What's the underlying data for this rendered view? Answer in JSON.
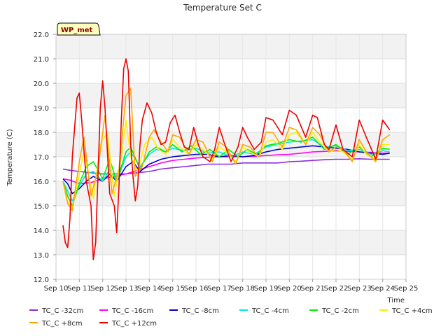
{
  "chart_data": {
    "type": "line",
    "title": "Temperature Set C",
    "xlabel": "Time",
    "ylabel": "Temperature (C)",
    "badge": "WP_met",
    "xlim": [
      10,
      25
    ],
    "ylim": [
      12.0,
      22.0
    ],
    "x_ticks": [
      {
        "value": 10,
        "label": "Sep 10"
      },
      {
        "value": 11,
        "label": "Sep 11"
      },
      {
        "value": 12,
        "label": "Sep 12"
      },
      {
        "value": 13,
        "label": "Sep 13"
      },
      {
        "value": 14,
        "label": "Sep 14"
      },
      {
        "value": 15,
        "label": "Sep 15"
      },
      {
        "value": 16,
        "label": "Sep 16"
      },
      {
        "value": 17,
        "label": "Sep 17"
      },
      {
        "value": 18,
        "label": "Sep 18"
      },
      {
        "value": 19,
        "label": "Sep 19"
      },
      {
        "value": 20,
        "label": "Sep 20"
      },
      {
        "value": 21,
        "label": "Sep 21"
      },
      {
        "value": 22,
        "label": "Sep 22"
      },
      {
        "value": 23,
        "label": "Sep 23"
      },
      {
        "value": 24,
        "label": "Sep 24"
      },
      {
        "value": 25,
        "label": "Sep 25"
      }
    ],
    "y_ticks": [
      {
        "value": 12,
        "label": "12.0"
      },
      {
        "value": 13,
        "label": "13.0"
      },
      {
        "value": 14,
        "label": "14.0"
      },
      {
        "value": 15,
        "label": "15.0"
      },
      {
        "value": 16,
        "label": "16.0"
      },
      {
        "value": 17,
        "label": "17.0"
      },
      {
        "value": 18,
        "label": "18.0"
      },
      {
        "value": 19,
        "label": "19.0"
      },
      {
        "value": 20,
        "label": "20.0"
      },
      {
        "value": 21,
        "label": "21.0"
      },
      {
        "value": 22,
        "label": "22.0"
      }
    ],
    "grid": true,
    "legend_position": "bottom",
    "series": [
      {
        "name": "TC_C -32cm",
        "color": "#8a2be2",
        "x": [
          10.3,
          10.6,
          11.0,
          11.5,
          12.0,
          12.5,
          13.0,
          13.5,
          14.0,
          14.5,
          15.0,
          15.5,
          16.0,
          16.5,
          17.0,
          17.5,
          18.0,
          18.5,
          19.0,
          19.5,
          20.0,
          20.5,
          21.0,
          21.5,
          22.0,
          22.5,
          23.0,
          23.5,
          24.0,
          24.3
        ],
        "y": [
          16.5,
          16.45,
          16.4,
          16.35,
          16.3,
          16.3,
          16.3,
          16.35,
          16.4,
          16.5,
          16.55,
          16.6,
          16.65,
          16.7,
          16.7,
          16.7,
          16.75,
          16.75,
          16.75,
          16.75,
          16.8,
          16.82,
          16.85,
          16.88,
          16.9,
          16.9,
          16.92,
          16.9,
          16.9,
          16.9
        ]
      },
      {
        "name": "TC_C -16cm",
        "color": "#ff00ff",
        "x": [
          10.3,
          10.6,
          11.0,
          11.5,
          12.0,
          12.5,
          13.0,
          13.5,
          14.0,
          14.5,
          15.0,
          15.5,
          16.0,
          16.5,
          17.0,
          17.5,
          18.0,
          18.5,
          19.0,
          19.5,
          20.0,
          20.5,
          21.0,
          21.5,
          22.0,
          22.5,
          23.0,
          23.5,
          24.0,
          24.3
        ],
        "y": [
          16.1,
          16.05,
          15.9,
          15.95,
          16.1,
          16.2,
          16.3,
          16.45,
          16.6,
          16.75,
          16.85,
          16.9,
          16.95,
          16.98,
          17.0,
          17.0,
          17.0,
          17.02,
          17.05,
          17.08,
          17.1,
          17.15,
          17.2,
          17.22,
          17.25,
          17.22,
          17.2,
          17.18,
          17.15,
          17.15
        ]
      },
      {
        "name": "TC_C -8cm",
        "color": "#0000cd",
        "x": [
          10.3,
          10.5,
          10.7,
          11.0,
          11.3,
          11.6,
          12.0,
          12.3,
          12.6,
          13.0,
          13.3,
          13.6,
          14.0,
          14.5,
          15.0,
          15.5,
          16.0,
          16.5,
          17.0,
          17.5,
          18.0,
          18.5,
          19.0,
          19.5,
          20.0,
          20.5,
          21.0,
          21.5,
          22.0,
          22.5,
          23.0,
          23.5,
          24.0,
          24.3
        ],
        "y": [
          16.1,
          15.9,
          15.5,
          15.7,
          16.0,
          16.2,
          16.0,
          16.3,
          16.0,
          16.6,
          16.8,
          16.4,
          16.7,
          16.9,
          17.0,
          17.05,
          17.1,
          17.1,
          17.0,
          17.05,
          17.0,
          17.05,
          17.2,
          17.3,
          17.35,
          17.4,
          17.45,
          17.4,
          17.35,
          17.3,
          17.2,
          17.15,
          17.1,
          17.15
        ]
      },
      {
        "name": "TC_C -4cm",
        "color": "#00e5ee",
        "x": [
          10.3,
          10.5,
          10.7,
          11.0,
          11.3,
          11.6,
          12.0,
          12.3,
          12.6,
          13.0,
          13.2,
          13.6,
          14.0,
          14.3,
          14.7,
          15.0,
          15.5,
          16.0,
          16.5,
          17.0,
          17.5,
          18.0,
          18.5,
          19.0,
          19.5,
          20.0,
          20.5,
          21.0,
          21.5,
          22.0,
          22.5,
          23.0,
          23.5,
          24.0,
          24.3
        ],
        "y": [
          16.0,
          15.6,
          15.2,
          15.8,
          16.3,
          16.4,
          16.0,
          16.5,
          16.0,
          17.0,
          17.2,
          16.6,
          17.1,
          17.3,
          17.2,
          17.35,
          17.25,
          17.35,
          17.15,
          17.2,
          17.0,
          17.2,
          17.1,
          17.4,
          17.5,
          17.6,
          17.65,
          17.7,
          17.4,
          17.45,
          17.25,
          17.3,
          17.1,
          17.25,
          17.2
        ]
      },
      {
        "name": "TC_C -2cm",
        "color": "#00ee00",
        "x": [
          10.3,
          10.5,
          10.7,
          11.0,
          11.3,
          11.6,
          12.0,
          12.3,
          12.6,
          13.0,
          13.2,
          13.6,
          14.0,
          14.3,
          14.7,
          15.0,
          15.4,
          15.8,
          16.2,
          16.6,
          17.0,
          17.4,
          17.8,
          18.2,
          18.6,
          19.0,
          19.5,
          20.0,
          20.5,
          21.0,
          21.5,
          22.0,
          22.5,
          23.0,
          23.5,
          24.0,
          24.3
        ],
        "y": [
          16.0,
          15.4,
          15.0,
          15.9,
          16.6,
          16.8,
          16.1,
          16.9,
          16.0,
          17.2,
          17.4,
          16.5,
          17.2,
          17.4,
          17.2,
          17.5,
          17.2,
          17.45,
          17.1,
          17.3,
          17.0,
          17.3,
          17.0,
          17.3,
          17.1,
          17.45,
          17.55,
          17.7,
          17.6,
          17.8,
          17.3,
          17.5,
          17.1,
          17.4,
          17.0,
          17.35,
          17.3
        ]
      },
      {
        "name": "TC_C +4cm",
        "color": "#ffee00",
        "x": [
          10.3,
          10.5,
          10.7,
          11.0,
          11.2,
          11.6,
          11.9,
          12.2,
          12.5,
          12.8,
          13.0,
          13.2,
          13.5,
          13.8,
          14.1,
          14.4,
          14.7,
          15.0,
          15.3,
          15.7,
          16.0,
          16.3,
          16.7,
          17.0,
          17.3,
          17.7,
          18.0,
          18.3,
          18.7,
          19.0,
          19.3,
          19.7,
          20.0,
          20.3,
          20.7,
          21.0,
          21.3,
          21.7,
          22.0,
          22.3,
          22.7,
          23.0,
          23.3,
          23.7,
          24.0,
          24.3
        ],
        "y": [
          16.0,
          15.2,
          14.9,
          16.3,
          17.2,
          15.3,
          17.5,
          18.0,
          15.4,
          17.0,
          18.5,
          17.0,
          16.4,
          17.5,
          17.8,
          17.3,
          17.1,
          17.7,
          17.4,
          17.1,
          17.5,
          17.3,
          16.9,
          17.4,
          17.2,
          16.8,
          17.4,
          17.2,
          17.0,
          17.6,
          17.7,
          17.3,
          17.9,
          18.0,
          17.5,
          18.0,
          17.6,
          17.2,
          17.3,
          17.2,
          16.9,
          17.5,
          17.1,
          16.9,
          17.5,
          17.5
        ]
      },
      {
        "name": "TC_C +8cm",
        "color": "#ffa500",
        "x": [
          10.3,
          10.5,
          10.7,
          11.0,
          11.2,
          11.5,
          11.8,
          12.1,
          12.4,
          12.7,
          13.0,
          13.2,
          13.4,
          13.7,
          14.0,
          14.2,
          14.5,
          14.8,
          15.0,
          15.3,
          15.7,
          16.0,
          16.3,
          16.7,
          17.0,
          17.3,
          17.7,
          18.0,
          18.3,
          18.7,
          19.0,
          19.3,
          19.7,
          20.0,
          20.3,
          20.7,
          21.0,
          21.3,
          21.7,
          22.0,
          22.3,
          22.7,
          23.0,
          23.3,
          23.7,
          24.0,
          24.3
        ],
        "y": [
          16.0,
          15.1,
          14.8,
          16.8,
          17.8,
          15.4,
          16.5,
          18.7,
          15.5,
          16.5,
          19.5,
          19.8,
          16.2,
          16.6,
          17.8,
          18.1,
          17.6,
          17.2,
          17.9,
          17.8,
          17.1,
          17.7,
          17.6,
          16.8,
          17.6,
          17.4,
          16.7,
          17.5,
          17.4,
          17.0,
          18.0,
          18.0,
          17.4,
          18.2,
          18.1,
          17.5,
          18.2,
          17.9,
          17.2,
          17.4,
          17.3,
          16.8,
          17.7,
          17.2,
          16.8,
          17.7,
          17.9
        ]
      },
      {
        "name": "TC_C +12cm",
        "color": "#ee0000",
        "x": [
          10.3,
          10.4,
          10.5,
          10.6,
          10.7,
          10.9,
          11.0,
          11.1,
          11.3,
          11.5,
          11.6,
          11.7,
          11.9,
          12.0,
          12.1,
          12.3,
          12.5,
          12.6,
          12.7,
          12.8,
          12.9,
          13.0,
          13.1,
          13.2,
          13.3,
          13.4,
          13.5,
          13.6,
          13.7,
          13.9,
          14.1,
          14.3,
          14.5,
          14.7,
          14.9,
          15.1,
          15.3,
          15.5,
          15.7,
          15.9,
          16.1,
          16.3,
          16.6,
          16.8,
          17.0,
          17.2,
          17.5,
          17.8,
          18.0,
          18.2,
          18.5,
          18.8,
          19.0,
          19.3,
          19.7,
          20.0,
          20.3,
          20.7,
          21.0,
          21.2,
          21.5,
          21.7,
          22.0,
          22.3,
          22.7,
          23.0,
          23.3,
          23.7,
          24.0,
          24.3
        ],
        "y": [
          14.2,
          13.5,
          13.3,
          14.5,
          17.0,
          19.4,
          19.6,
          18.5,
          16.0,
          15.0,
          12.8,
          13.5,
          19.0,
          20.1,
          19.0,
          15.5,
          15.0,
          13.9,
          15.8,
          18.5,
          20.6,
          21.0,
          20.5,
          17.5,
          16.2,
          15.2,
          15.8,
          17.5,
          18.5,
          19.2,
          18.8,
          18.0,
          17.5,
          17.6,
          18.4,
          18.7,
          18.0,
          17.4,
          17.3,
          18.2,
          17.5,
          17.0,
          16.8,
          17.3,
          18.2,
          17.6,
          16.8,
          17.4,
          18.2,
          17.8,
          17.3,
          17.6,
          18.6,
          18.5,
          17.9,
          18.9,
          18.7,
          17.8,
          18.7,
          18.6,
          17.5,
          17.3,
          18.3,
          17.3,
          17.0,
          18.5,
          17.8,
          16.9,
          18.5,
          18.1
        ]
      }
    ]
  }
}
